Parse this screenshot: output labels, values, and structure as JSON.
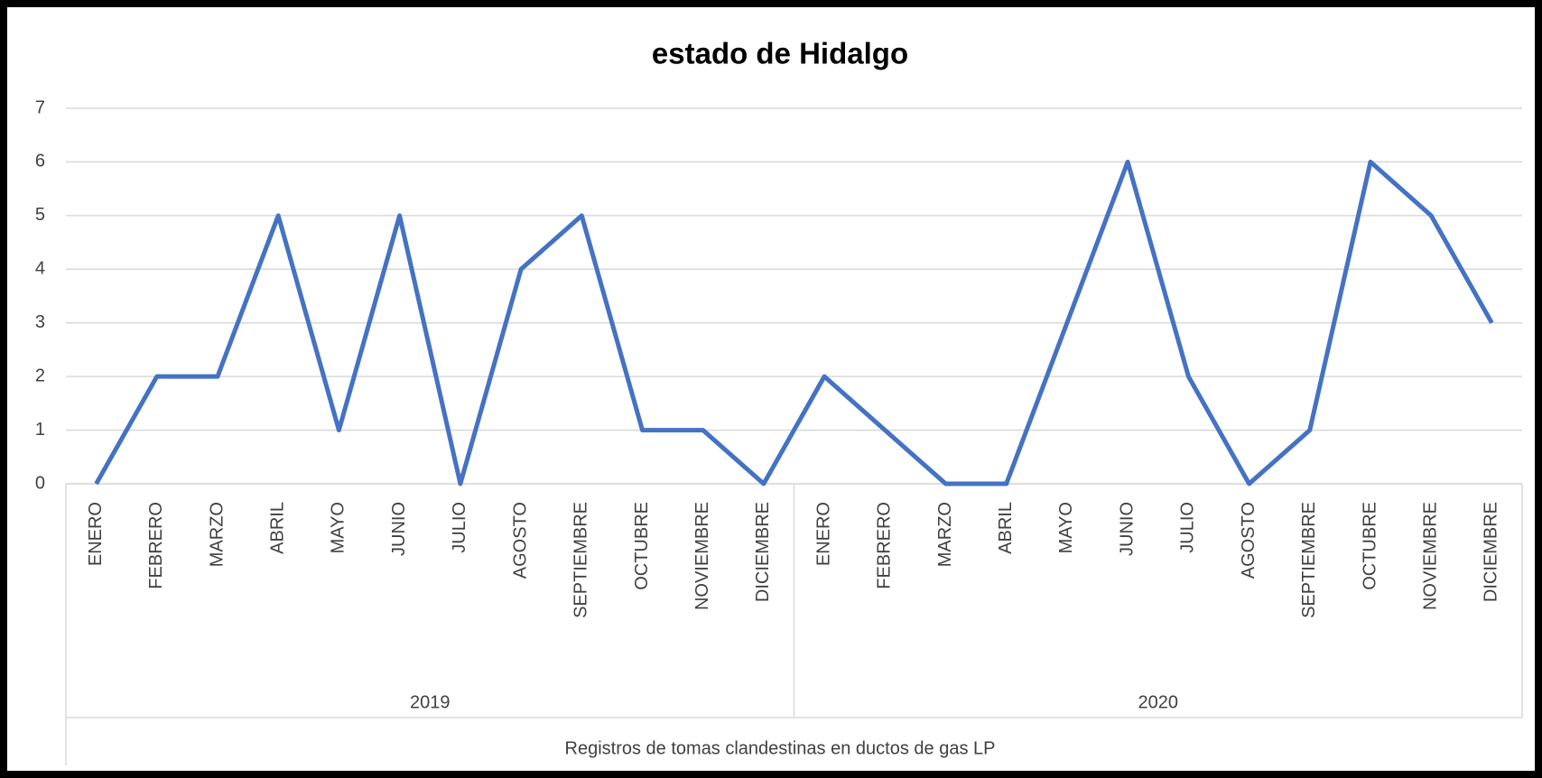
{
  "chart_data": {
    "type": "line",
    "title": "estado de Hidalgo",
    "x_label": "Registros de tomas clandestinas  en ductos de gas LP",
    "categories": [
      "ENERO",
      "FEBRERO",
      "MARZO",
      "ABRIL",
      "MAYO",
      "JUNIO",
      "JULIO",
      "AGOSTO",
      "SEPTIEMBRE",
      "OCTUBRE",
      "NOVIEMBRE",
      "DICIEMBRE",
      "ENERO",
      "FEBRERO",
      "MARZO",
      "ABRIL",
      "MAYO",
      "JUNIO",
      "JULIO",
      "AGOSTO",
      "SEPTIEMBRE",
      "OCTUBRE",
      "NOVIEMBRE",
      "DICIEMBRE"
    ],
    "category_groups": [
      "2019",
      "2020"
    ],
    "values": [
      0,
      2,
      2,
      5,
      1,
      5,
      0,
      4,
      5,
      1,
      1,
      0,
      2,
      1,
      0,
      0,
      3,
      6,
      2,
      0,
      1,
      6,
      5,
      3
    ],
    "color": "#4472c4",
    "ylim": [
      0,
      7
    ],
    "yticks": [
      0,
      1,
      2,
      3,
      4,
      5,
      6,
      7
    ],
    "grid": true
  }
}
